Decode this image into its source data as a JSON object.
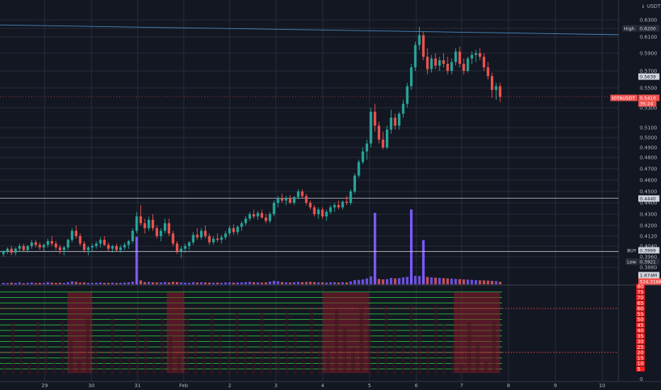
{
  "chart_data": {
    "type": "candlestick",
    "currency": "USDT",
    "price_axis": {
      "ylim": [
        0.382,
        0.637
      ],
      "tick_values": [
        0.63,
        0.62,
        0.61,
        0.59,
        0.57,
        0.55,
        0.53,
        0.51,
        0.5,
        0.49,
        0.48,
        0.47,
        0.46,
        0.45,
        0.44,
        0.43,
        0.42,
        0.412,
        0.404,
        0.396,
        0.388
      ],
      "tick_labels": [
        "0.6300",
        "0.6200",
        "0.6100",
        "0.5900",
        "0.5700",
        "0.5500",
        "0.5300",
        "0.5100",
        "0.5000",
        "0.4900",
        "0.4800",
        "0.4700",
        "0.4600",
        "0.4500",
        "0.4400",
        "0.4300",
        "0.4200",
        "0.4120",
        "0.4040",
        "0.3960",
        "0.3880"
      ]
    },
    "osc_axis": {
      "ylim": [
        0,
        80
      ],
      "tick_labels": [
        "80",
        "75",
        "70",
        "65",
        "60",
        "55",
        "50",
        "45",
        "40",
        "35",
        "30",
        "25",
        "20",
        "15",
        "10",
        "5",
        "0"
      ]
    },
    "x_axis": {
      "labels": [
        "29",
        "30",
        "31",
        "Feb",
        "2",
        "3",
        "4",
        "5",
        "6",
        "7",
        "8",
        "9",
        "10"
      ]
    },
    "tags": [
      {
        "label": "High",
        "value": "0.6200",
        "color": "#2a2e39",
        "text": "#d1d4dc"
      },
      {
        "label": "",
        "value": "0.5639",
        "color": "#d1d4dc",
        "text": "#131722"
      },
      {
        "label": "IOTAUSDT",
        "value": "0.5410",
        "color": "#ef5350",
        "text": "#ffffff"
      },
      {
        "label": "",
        "value": "35:24",
        "color": "#ef5350",
        "text": "#ffffff"
      },
      {
        "label": "",
        "value": "0.4440",
        "color": "#d1d4dc",
        "text": "#131722"
      },
      {
        "label": "BUY",
        "value": "0.3999",
        "color": "#d1d4dc",
        "text": "#131722"
      },
      {
        "label": "Low",
        "value": "0.3921",
        "color": "#2a2e39",
        "text": "#d1d4dc"
      },
      {
        "label": "",
        "value": "1.674M",
        "color": "#d1d4dc",
        "text": "#131722"
      },
      {
        "label": "",
        "value": "524.316K",
        "color": "#ef5350",
        "text": "#ffffff"
      }
    ],
    "horizontal_lines": [
      {
        "name": "resistance",
        "value": 0.444,
        "color": "#d1d4dc"
      },
      {
        "name": "buy",
        "value": 0.3999,
        "color": "#d1d4dc"
      }
    ],
    "trendline": {
      "from": [
        0,
        0.624
      ],
      "to": [
        872,
        0.6126
      ],
      "color": "#4a90c8"
    },
    "candles": [
      [
        0.398,
        0.401,
        0.396,
        0.4
      ],
      [
        0.4,
        0.403,
        0.398,
        0.402
      ],
      [
        0.402,
        0.404,
        0.397,
        0.399
      ],
      [
        0.399,
        0.403,
        0.397,
        0.402
      ],
      [
        0.402,
        0.406,
        0.4,
        0.404
      ],
      [
        0.404,
        0.406,
        0.4,
        0.401
      ],
      [
        0.401,
        0.405,
        0.399,
        0.404
      ],
      [
        0.404,
        0.409,
        0.402,
        0.407
      ],
      [
        0.407,
        0.409,
        0.403,
        0.405
      ],
      [
        0.405,
        0.407,
        0.401,
        0.403
      ],
      [
        0.403,
        0.406,
        0.4,
        0.405
      ],
      [
        0.405,
        0.41,
        0.403,
        0.408
      ],
      [
        0.408,
        0.412,
        0.404,
        0.406
      ],
      [
        0.406,
        0.408,
        0.401,
        0.403
      ],
      [
        0.403,
        0.405,
        0.398,
        0.401
      ],
      [
        0.401,
        0.404,
        0.397,
        0.403
      ],
      [
        0.403,
        0.41,
        0.401,
        0.409
      ],
      [
        0.409,
        0.418,
        0.407,
        0.416
      ],
      [
        0.416,
        0.42,
        0.41,
        0.412
      ],
      [
        0.412,
        0.414,
        0.404,
        0.406
      ],
      [
        0.406,
        0.408,
        0.399,
        0.401
      ],
      [
        0.401,
        0.404,
        0.397,
        0.403
      ],
      [
        0.403,
        0.406,
        0.4,
        0.404
      ],
      [
        0.404,
        0.408,
        0.402,
        0.406
      ],
      [
        0.406,
        0.411,
        0.403,
        0.409
      ],
      [
        0.409,
        0.412,
        0.404,
        0.405
      ],
      [
        0.405,
        0.407,
        0.4,
        0.402
      ],
      [
        0.402,
        0.405,
        0.399,
        0.404
      ],
      [
        0.404,
        0.406,
        0.4,
        0.401
      ],
      [
        0.401,
        0.405,
        0.399,
        0.403
      ],
      [
        0.403,
        0.407,
        0.401,
        0.405
      ],
      [
        0.405,
        0.409,
        0.402,
        0.408
      ],
      [
        0.408,
        0.418,
        0.406,
        0.416
      ],
      [
        0.416,
        0.432,
        0.414,
        0.428
      ],
      [
        0.428,
        0.438,
        0.42,
        0.422
      ],
      [
        0.422,
        0.426,
        0.414,
        0.418
      ],
      [
        0.418,
        0.428,
        0.416,
        0.425
      ],
      [
        0.425,
        0.43,
        0.416,
        0.418
      ],
      [
        0.418,
        0.42,
        0.41,
        0.412
      ],
      [
        0.412,
        0.418,
        0.408,
        0.416
      ],
      [
        0.416,
        0.426,
        0.414,
        0.422
      ],
      [
        0.422,
        0.426,
        0.412,
        0.414
      ],
      [
        0.414,
        0.416,
        0.404,
        0.406
      ],
      [
        0.406,
        0.408,
        0.398,
        0.4
      ],
      [
        0.4,
        0.404,
        0.395,
        0.402
      ],
      [
        0.402,
        0.406,
        0.399,
        0.404
      ],
      [
        0.404,
        0.408,
        0.401,
        0.407
      ],
      [
        0.407,
        0.415,
        0.405,
        0.413
      ],
      [
        0.413,
        0.418,
        0.409,
        0.411
      ],
      [
        0.411,
        0.418,
        0.409,
        0.416
      ],
      [
        0.416,
        0.42,
        0.41,
        0.412
      ],
      [
        0.412,
        0.414,
        0.405,
        0.407
      ],
      [
        0.407,
        0.412,
        0.405,
        0.41
      ],
      [
        0.41,
        0.414,
        0.407,
        0.409
      ],
      [
        0.409,
        0.413,
        0.406,
        0.411
      ],
      [
        0.411,
        0.416,
        0.409,
        0.414
      ],
      [
        0.414,
        0.42,
        0.412,
        0.418
      ],
      [
        0.418,
        0.421,
        0.413,
        0.415
      ],
      [
        0.415,
        0.42,
        0.413,
        0.419
      ],
      [
        0.419,
        0.424,
        0.416,
        0.422
      ],
      [
        0.422,
        0.428,
        0.42,
        0.426
      ],
      [
        0.426,
        0.432,
        0.424,
        0.43
      ],
      [
        0.43,
        0.434,
        0.426,
        0.428
      ],
      [
        0.428,
        0.433,
        0.425,
        0.431
      ],
      [
        0.431,
        0.434,
        0.426,
        0.427
      ],
      [
        0.427,
        0.43,
        0.422,
        0.424
      ],
      [
        0.424,
        0.432,
        0.422,
        0.43
      ],
      [
        0.43,
        0.442,
        0.428,
        0.44
      ],
      [
        0.44,
        0.446,
        0.436,
        0.444
      ],
      [
        0.444,
        0.448,
        0.44,
        0.442
      ],
      [
        0.442,
        0.446,
        0.438,
        0.444
      ],
      [
        0.444,
        0.447,
        0.439,
        0.44
      ],
      [
        0.44,
        0.446,
        0.438,
        0.445
      ],
      [
        0.445,
        0.452,
        0.443,
        0.45
      ],
      [
        0.45,
        0.452,
        0.444,
        0.446
      ],
      [
        0.446,
        0.448,
        0.438,
        0.44
      ],
      [
        0.44,
        0.442,
        0.434,
        0.436
      ],
      [
        0.436,
        0.438,
        0.428,
        0.43
      ],
      [
        0.43,
        0.436,
        0.426,
        0.434
      ],
      [
        0.434,
        0.436,
        0.426,
        0.428
      ],
      [
        0.428,
        0.434,
        0.424,
        0.432
      ],
      [
        0.432,
        0.438,
        0.43,
        0.436
      ],
      [
        0.436,
        0.44,
        0.432,
        0.438
      ],
      [
        0.438,
        0.442,
        0.434,
        0.436
      ],
      [
        0.436,
        0.442,
        0.434,
        0.441
      ],
      [
        0.441,
        0.446,
        0.438,
        0.44
      ],
      [
        0.44,
        0.452,
        0.438,
        0.45
      ],
      [
        0.45,
        0.466,
        0.448,
        0.464
      ],
      [
        0.464,
        0.478,
        0.462,
        0.476
      ],
      [
        0.476,
        0.49,
        0.474,
        0.486
      ],
      [
        0.486,
        0.498,
        0.478,
        0.494
      ],
      [
        0.494,
        0.53,
        0.49,
        0.526
      ],
      [
        0.526,
        0.534,
        0.506,
        0.512
      ],
      [
        0.512,
        0.516,
        0.494,
        0.498
      ],
      [
        0.498,
        0.506,
        0.488,
        0.49
      ],
      [
        0.49,
        0.512,
        0.488,
        0.508
      ],
      [
        0.508,
        0.528,
        0.504,
        0.52
      ],
      [
        0.52,
        0.524,
        0.508,
        0.512
      ],
      [
        0.512,
        0.526,
        0.508,
        0.524
      ],
      [
        0.524,
        0.538,
        0.52,
        0.534
      ],
      [
        0.534,
        0.556,
        0.53,
        0.552
      ],
      [
        0.552,
        0.578,
        0.548,
        0.574
      ],
      [
        0.574,
        0.604,
        0.57,
        0.6
      ],
      [
        0.6,
        0.622,
        0.594,
        0.612
      ],
      [
        0.612,
        0.616,
        0.582,
        0.586
      ],
      [
        0.586,
        0.596,
        0.566,
        0.572
      ],
      [
        0.572,
        0.588,
        0.568,
        0.584
      ],
      [
        0.584,
        0.59,
        0.572,
        0.576
      ],
      [
        0.576,
        0.586,
        0.57,
        0.582
      ],
      [
        0.582,
        0.59,
        0.574,
        0.578
      ],
      [
        0.578,
        0.586,
        0.566,
        0.57
      ],
      [
        0.57,
        0.584,
        0.566,
        0.58
      ],
      [
        0.58,
        0.596,
        0.576,
        0.592
      ],
      [
        0.592,
        0.598,
        0.574,
        0.578
      ],
      [
        0.578,
        0.584,
        0.566,
        0.57
      ],
      [
        0.57,
        0.586,
        0.568,
        0.584
      ],
      [
        0.584,
        0.592,
        0.578,
        0.588
      ],
      [
        0.588,
        0.594,
        0.58,
        0.59
      ],
      [
        0.59,
        0.596,
        0.582,
        0.586
      ],
      [
        0.586,
        0.59,
        0.57,
        0.574
      ],
      [
        0.574,
        0.58,
        0.56,
        0.564
      ],
      [
        0.564,
        0.568,
        0.54,
        0.548
      ],
      [
        0.548,
        0.556,
        0.538,
        0.552
      ],
      [
        0.552,
        0.556,
        0.536,
        0.541
      ]
    ],
    "volumes": [
      0.3,
      0.25,
      0.35,
      0.28,
      0.4,
      0.22,
      0.3,
      0.38,
      0.26,
      0.32,
      0.29,
      0.45,
      0.36,
      0.3,
      0.33,
      0.27,
      0.42,
      0.6,
      0.5,
      0.35,
      0.4,
      0.3,
      0.28,
      0.33,
      0.38,
      0.31,
      0.29,
      0.35,
      0.27,
      0.3,
      0.36,
      0.4,
      0.55,
      1.1,
      0.8,
      0.45,
      0.5,
      0.42,
      0.38,
      0.4,
      0.48,
      0.4,
      0.52,
      0.46,
      0.39,
      0.34,
      0.31,
      0.45,
      0.38,
      0.42,
      0.4,
      0.36,
      0.33,
      0.35,
      0.3,
      0.38,
      0.41,
      0.34,
      0.36,
      0.4,
      0.44,
      0.5,
      0.42,
      0.39,
      0.36,
      0.4,
      0.55,
      0.7,
      0.62,
      0.45,
      0.4,
      0.38,
      0.42,
      0.5,
      0.44,
      0.48,
      0.52,
      0.46,
      0.4,
      0.38,
      0.36,
      0.4,
      0.42,
      0.38,
      0.44,
      0.4,
      0.6,
      0.85,
      0.9,
      1.0,
      1.2,
      1.6,
      1.3,
      1.1,
      1.0,
      1.05,
      1.3,
      1.2,
      1.25,
      1.4,
      1.5,
      1.55,
      1.7,
      1.674,
      1.6,
      1.5,
      1.4,
      1.35,
      1.3,
      1.25,
      1.2,
      1.15,
      1.1,
      1.05,
      1.0,
      0.95,
      0.9,
      0.85,
      0.8,
      0.8,
      0.75,
      0.7,
      0.65,
      0.524316
    ],
    "volume_spikes": [
      [
        92,
        2.1
      ],
      [
        101,
        2.2
      ],
      [
        33,
        1.4
      ],
      [
        104,
        1.3
      ]
    ],
    "oscillator": {
      "green_levels": [
        75,
        70,
        65,
        60,
        55,
        50,
        45,
        40,
        35,
        30,
        25,
        20,
        15,
        10,
        5
      ],
      "red_bands": [
        [
          95,
          130
        ],
        [
          235,
          260
        ],
        [
          455,
          520
        ],
        [
          640,
          705
        ]
      ],
      "ref_lines": [
        60,
        20
      ]
    },
    "colors": {
      "up": "#26a69a",
      "down": "#ef5350",
      "vol_up": "#7b5cff",
      "vol_down": "#e45b6b",
      "grid": "#2a2e39",
      "background": "#131722",
      "osc_green": "#2ecc40",
      "osc_red": "#ff1e1e"
    }
  }
}
